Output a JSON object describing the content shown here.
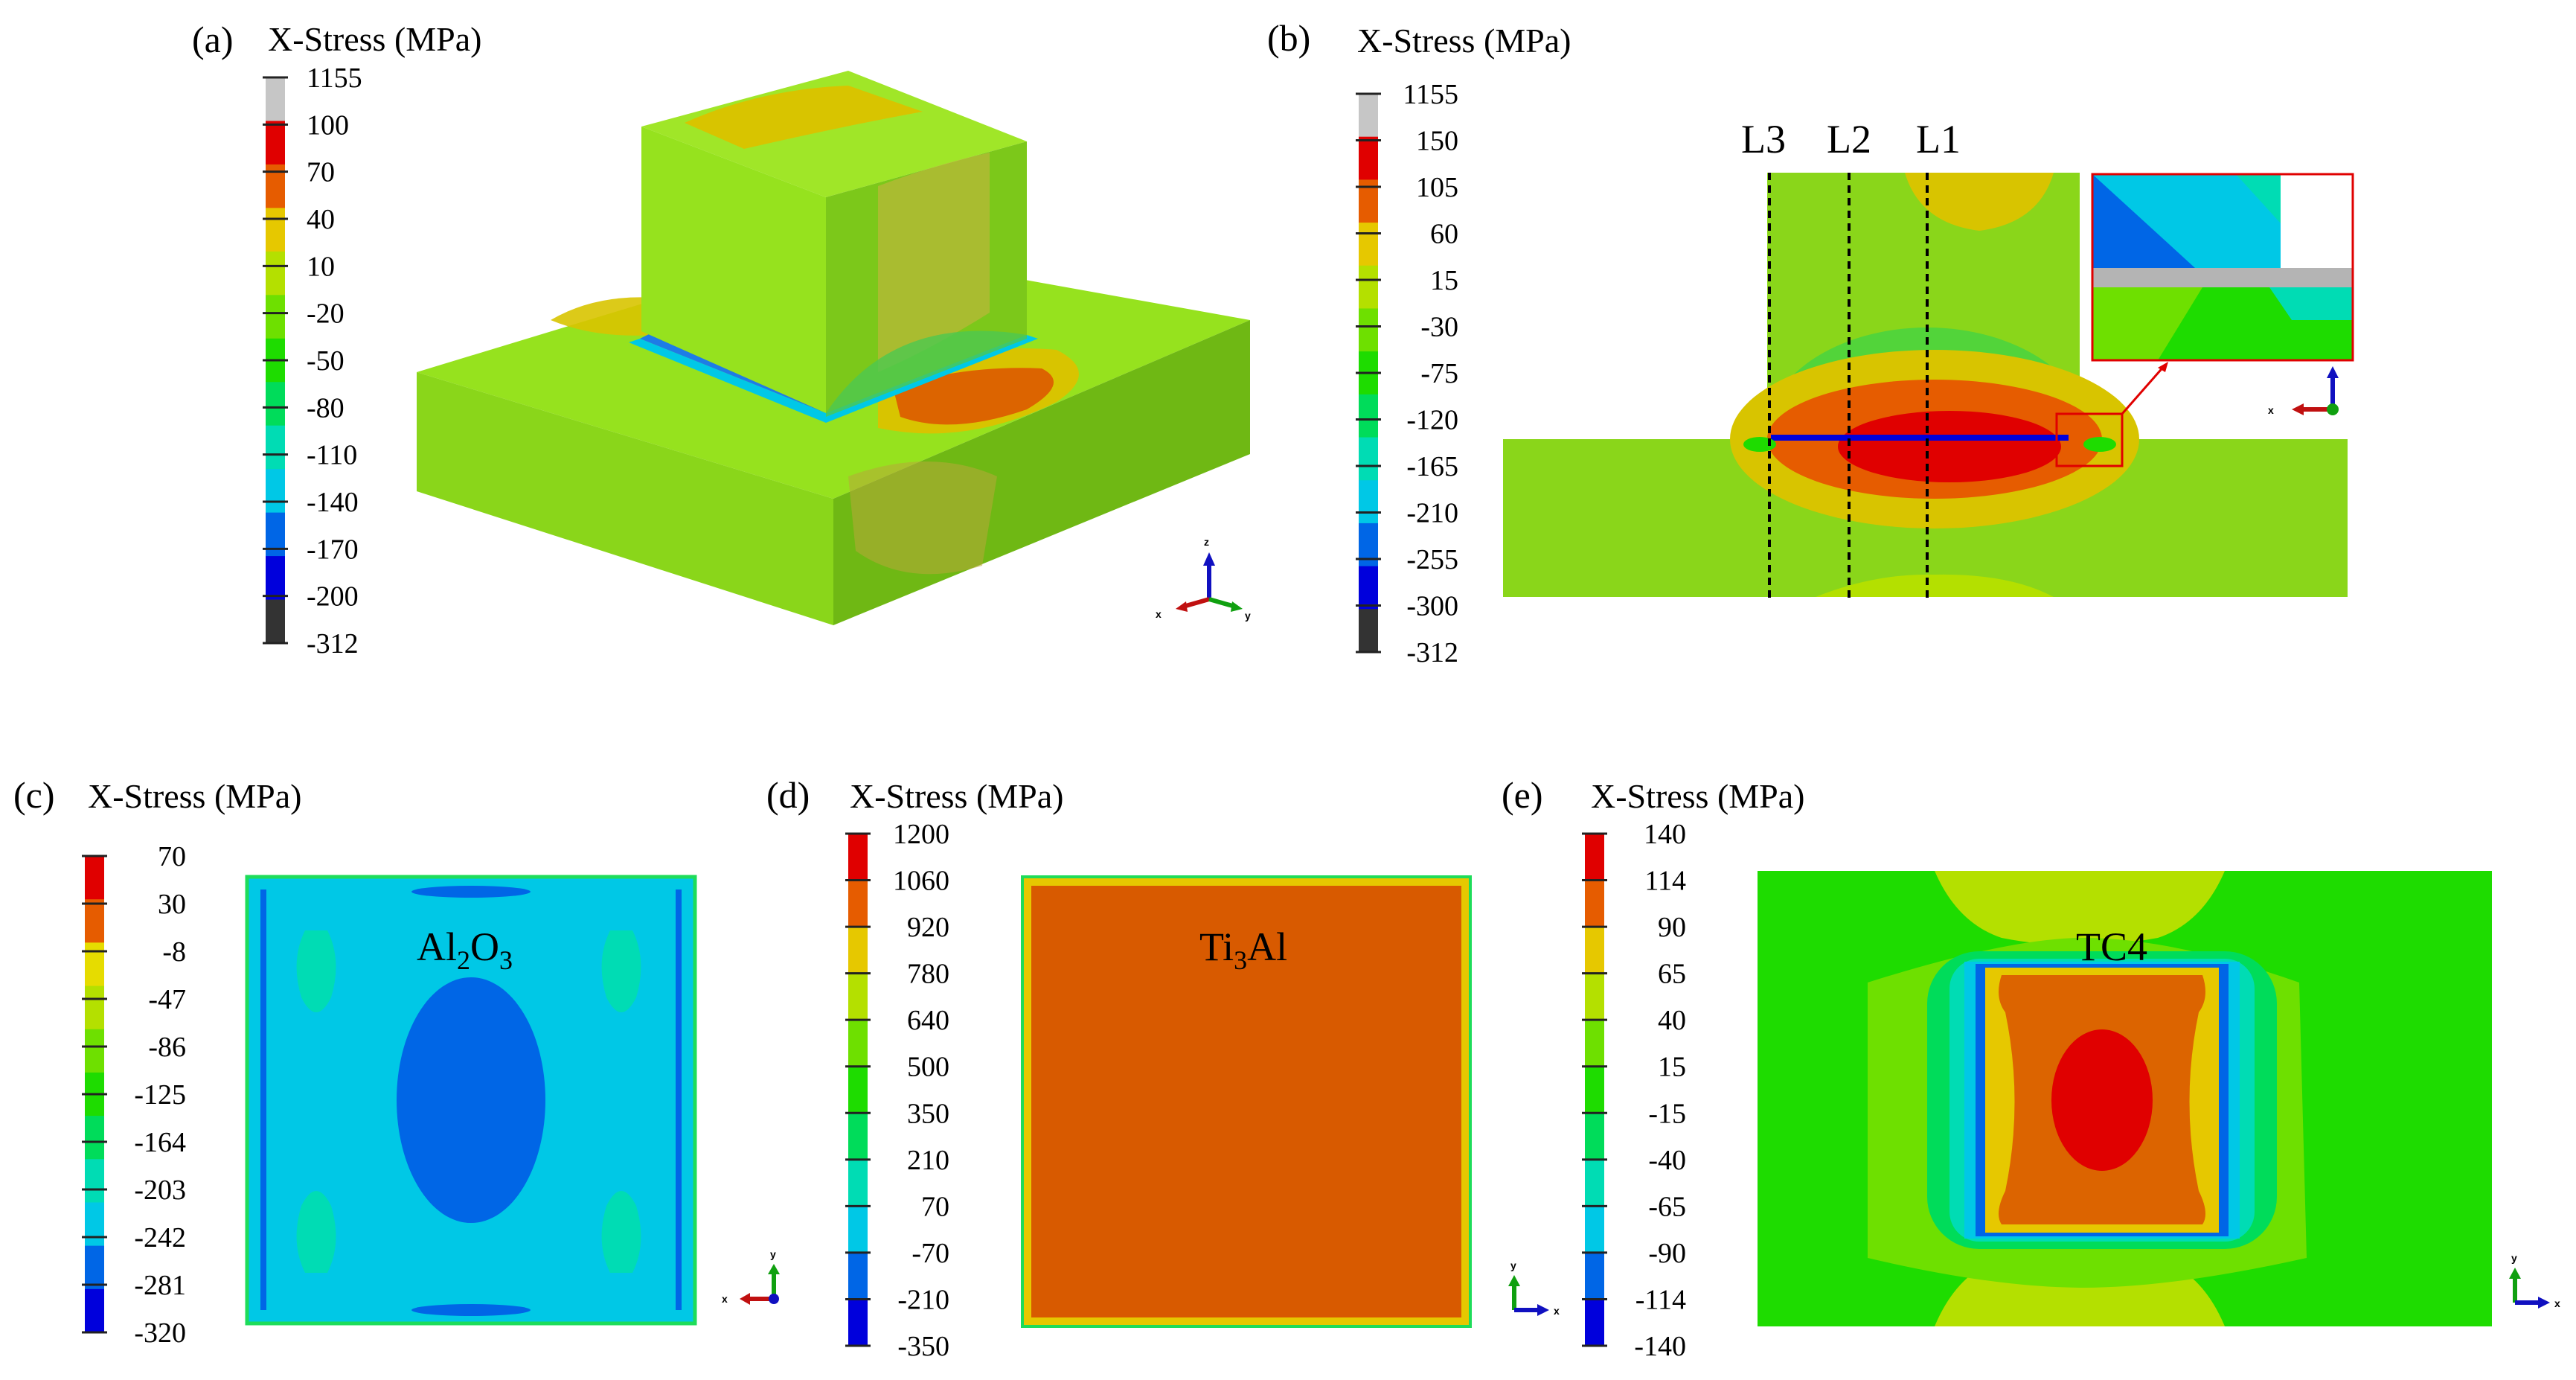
{
  "panel_a": {
    "letter": "(a)",
    "title": "X-Stress (MPa)",
    "legend": {
      "labels": [
        "1155",
        "100",
        "70",
        "40",
        "10",
        "-20",
        "-50",
        "-80",
        "-110",
        "-140",
        "-170",
        "-200",
        "-312"
      ],
      "colors": [
        "#c6c6c6",
        "#e00000",
        "#e65c00",
        "#e6c800",
        "#b4e000",
        "#6ee000",
        "#1edc00",
        "#00dc5a",
        "#00dcb4",
        "#00c8e6",
        "#0066e6",
        "#0000dc",
        "#333333"
      ]
    },
    "triad": {
      "z": "z",
      "x": "x",
      "y": "y"
    }
  },
  "panel_b": {
    "letter": "(b)",
    "title": "X-Stress (MPa)",
    "legend": {
      "labels": [
        "1155",
        "150",
        "105",
        "60",
        "15",
        "-30",
        "-75",
        "-120",
        "-165",
        "-210",
        "-255",
        "-300",
        "-312"
      ],
      "colors": [
        "#c6c6c6",
        "#e00000",
        "#e65c00",
        "#e6c800",
        "#b4e000",
        "#6ee000",
        "#1edc00",
        "#00dc5a",
        "#00dcb4",
        "#00c8e6",
        "#0066e6",
        "#0000dc",
        "#333333"
      ]
    },
    "lines": [
      "L3",
      "L2",
      "L1"
    ],
    "triad": {
      "x": "x"
    }
  },
  "panel_c": {
    "letter": "(c)",
    "title": "X-Stress (MPa)",
    "legend": {
      "labels": [
        "70",
        "30",
        "-8",
        "-47",
        "-86",
        "-125",
        "-164",
        "-203",
        "-242",
        "-281",
        "-320"
      ],
      "colors": [
        "#e00000",
        "#e65c00",
        "#e6dc00",
        "#b4e000",
        "#6ee000",
        "#1edc00",
        "#00dc5a",
        "#00dcb4",
        "#00c8e6",
        "#0066e6",
        "#0000dc"
      ]
    },
    "material_main": "Al",
    "material_sub1": "2",
    "material_mid": "O",
    "material_sub2": "3",
    "triad": {
      "y": "y",
      "x": "x"
    }
  },
  "panel_d": {
    "letter": "(d)",
    "title": "X-Stress (MPa)",
    "legend": {
      "labels": [
        "1200",
        "1060",
        "920",
        "780",
        "640",
        "500",
        "350",
        "210",
        "70",
        "-70",
        "-210",
        "-350"
      ],
      "colors": [
        "#e00000",
        "#e65c00",
        "#e6c800",
        "#b4e000",
        "#6ee000",
        "#1edc00",
        "#00dc5a",
        "#00dcb4",
        "#00c8e6",
        "#0066e6",
        "#0000dc"
      ]
    },
    "material_main": "Ti",
    "material_sub1": "3",
    "material_end": "Al",
    "triad": {
      "y": "y",
      "x": "x"
    }
  },
  "panel_e": {
    "letter": "(e)",
    "title": "X-Stress (MPa)",
    "legend": {
      "labels": [
        "140",
        "114",
        "90",
        "65",
        "40",
        "15",
        "-15",
        "-40",
        "-65",
        "-90",
        "-114",
        "-140"
      ],
      "colors": [
        "#e00000",
        "#e65c00",
        "#e6c800",
        "#b4e000",
        "#6ee000",
        "#1edc00",
        "#00dc5a",
        "#00dcb4",
        "#00c8e6",
        "#0066e6",
        "#0000dc"
      ]
    },
    "material": "TC4",
    "triad": {
      "y": "y",
      "x": "x"
    }
  }
}
